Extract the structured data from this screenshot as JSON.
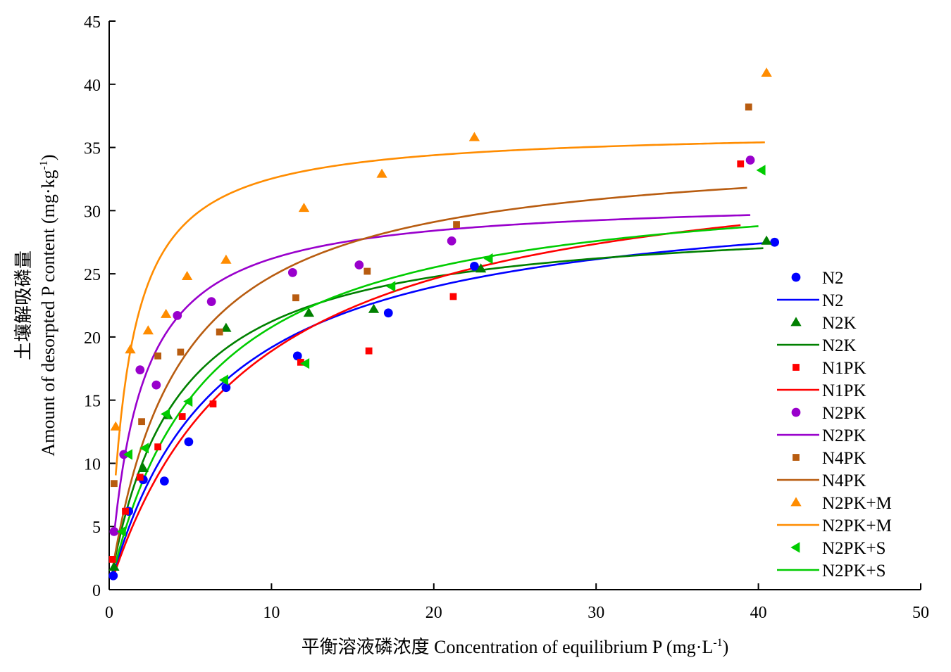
{
  "chart_data": {
    "type": "scatter",
    "xlabel": "平衡溶液磷浓度 Concentration of equilibrium P (mg·L",
    "xlabel_sup": "-1",
    "xlabel_end": ")",
    "ylabel_cn": "土壤解吸磷量",
    "ylabel": "Amount of desorpted P content (mg·kg",
    "ylabel_sup": "-1",
    "ylabel_end": ")",
    "xlim": [
      0,
      50
    ],
    "ylim": [
      0,
      45
    ],
    "x_ticks": [
      0,
      10,
      20,
      30,
      40,
      50
    ],
    "y_ticks": [
      0,
      5,
      10,
      15,
      20,
      25,
      30,
      35,
      40,
      45
    ],
    "legend_position": "right",
    "series": [
      {
        "name": "N2",
        "color": "#0000ff",
        "marker": "circle",
        "points": [
          [
            0.25,
            1.1
          ],
          [
            1.2,
            6.2
          ],
          [
            2.1,
            8.7
          ],
          [
            3.4,
            8.6
          ],
          [
            4.9,
            11.7
          ],
          [
            7.2,
            16.0
          ],
          [
            11.6,
            18.5
          ],
          [
            17.2,
            21.9
          ],
          [
            22.5,
            25.6
          ],
          [
            41.0,
            27.5
          ]
        ],
        "fit": {
          "model": "langmuir",
          "qmax": 31.96,
          "k": 0.15,
          "x_range": [
            0.2,
            40.8
          ]
        }
      },
      {
        "name": "N2K",
        "color": "#008000",
        "marker": "triangle-up",
        "points": [
          [
            0.3,
            1.8
          ],
          [
            2.1,
            9.6
          ],
          [
            3.6,
            13.8
          ],
          [
            7.2,
            20.7
          ],
          [
            12.3,
            21.9
          ],
          [
            16.3,
            22.2
          ],
          [
            22.9,
            25.4
          ],
          [
            40.5,
            27.6
          ]
        ],
        "fit": {
          "model": "langmuir",
          "qmax": 29.71,
          "k": 0.25,
          "x_range": [
            0.2,
            40.3
          ]
        }
      },
      {
        "name": "N1PK",
        "color": "#ff0000",
        "marker": "square",
        "points": [
          [
            0.2,
            2.4
          ],
          [
            1.0,
            6.2
          ],
          [
            1.9,
            8.9
          ],
          [
            3.0,
            11.3
          ],
          [
            4.5,
            13.7
          ],
          [
            6.4,
            14.7
          ],
          [
            11.8,
            18.0
          ],
          [
            16.0,
            18.9
          ],
          [
            21.2,
            23.2
          ],
          [
            38.9,
            33.7
          ]
        ],
        "fit": {
          "model": "langmuir",
          "qmax": 35.3,
          "k": 0.115,
          "x_range": [
            0.2,
            38.9
          ]
        }
      },
      {
        "name": "N2PK",
        "color": "#9900cc",
        "marker": "circle",
        "points": [
          [
            0.3,
            4.6
          ],
          [
            0.9,
            10.7
          ],
          [
            1.9,
            17.4
          ],
          [
            2.9,
            16.2
          ],
          [
            4.2,
            21.7
          ],
          [
            6.3,
            22.8
          ],
          [
            11.3,
            25.1
          ],
          [
            15.4,
            25.7
          ],
          [
            21.1,
            27.6
          ],
          [
            39.5,
            34.0
          ]
        ],
        "fit": {
          "model": "langmuir",
          "qmax": 31.04,
          "k": 0.54,
          "x_range": [
            0.35,
            39.5
          ]
        }
      },
      {
        "name": "N4PK",
        "color": "#b85c10",
        "marker": "square",
        "points": [
          [
            0.3,
            8.4
          ],
          [
            2.0,
            13.3
          ],
          [
            3.0,
            18.5
          ],
          [
            4.4,
            18.8
          ],
          [
            6.8,
            20.4
          ],
          [
            11.5,
            23.1
          ],
          [
            15.9,
            25.2
          ],
          [
            21.4,
            28.9
          ],
          [
            39.4,
            38.2
          ]
        ],
        "fit": {
          "model": "langmuir",
          "qmax": 35.21,
          "k": 0.238,
          "x_range": [
            0.2,
            39.3
          ]
        }
      },
      {
        "name": "N2PK+M",
        "color": "#ff8c00",
        "marker": "triangle-up",
        "points": [
          [
            0.4,
            12.9
          ],
          [
            1.3,
            19.0
          ],
          [
            2.4,
            20.5
          ],
          [
            3.5,
            21.8
          ],
          [
            4.8,
            24.8
          ],
          [
            7.2,
            26.1
          ],
          [
            12.0,
            30.2
          ],
          [
            16.8,
            32.9
          ],
          [
            22.5,
            35.8
          ],
          [
            40.5,
            40.9
          ]
        ],
        "fit": {
          "model": "langmuir",
          "qmax": 36.47,
          "k": 0.825,
          "x_range": [
            0.4,
            40.4
          ]
        }
      },
      {
        "name": "N2PK+S",
        "color": "#00cc00",
        "marker": "triangle-left",
        "points": [
          [
            0.8,
            4.6
          ],
          [
            1.2,
            10.7
          ],
          [
            2.2,
            11.2
          ],
          [
            3.5,
            13.9
          ],
          [
            4.9,
            14.9
          ],
          [
            7.1,
            16.6
          ],
          [
            12.1,
            17.9
          ],
          [
            17.4,
            24.0
          ],
          [
            23.4,
            26.2
          ],
          [
            40.2,
            33.2
          ]
        ],
        "fit": {
          "model": "langmuir",
          "qmax": 33.0,
          "k": 0.17,
          "x_range": [
            0.4,
            40.0
          ]
        }
      }
    ]
  }
}
